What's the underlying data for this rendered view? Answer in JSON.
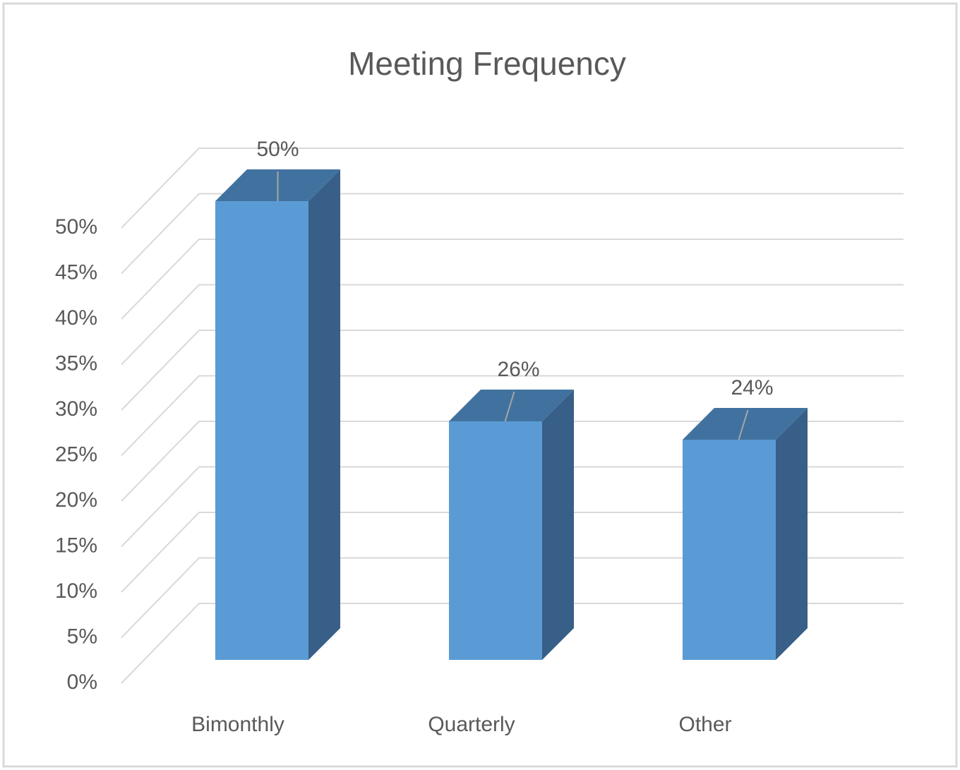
{
  "chart_data": {
    "type": "bar3d",
    "title": "Meeting Frequency",
    "categories": [
      "Bimonthly",
      "Quarterly",
      "Other"
    ],
    "values": [
      50,
      26,
      24
    ],
    "value_labels": [
      "50%",
      "26%",
      "24%"
    ],
    "color": "#5b9bd5",
    "ylim": [
      0,
      50
    ],
    "yticks": [
      {
        "value": 0,
        "label": "0%"
      },
      {
        "value": 5,
        "label": "5%"
      },
      {
        "value": 10,
        "label": "10%"
      },
      {
        "value": 15,
        "label": "15%"
      },
      {
        "value": 20,
        "label": "20%"
      },
      {
        "value": 25,
        "label": "25%"
      },
      {
        "value": 30,
        "label": "30%"
      },
      {
        "value": 35,
        "label": "35%"
      },
      {
        "value": 40,
        "label": "40%"
      },
      {
        "value": 45,
        "label": "45%"
      },
      {
        "value": 50,
        "label": "50%"
      }
    ],
    "grid": true
  }
}
